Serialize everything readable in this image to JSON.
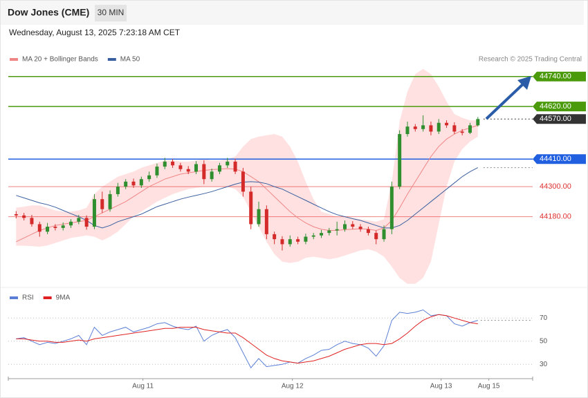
{
  "header": {
    "title": "Dow Jones (CME)",
    "interval": "30 MIN",
    "datetime": "Wednesday, August 13, 2025 7:23:18 AM CET"
  },
  "chart_data": [
    {
      "type": "candlestick",
      "credit": "Research © 2025 Trading Central",
      "up_color": "#2f8f2f",
      "down_color": "#d42a2a",
      "xlim": [
        -1,
        66
      ],
      "ylim": [
        43900,
        44880
      ],
      "open": [
        44190,
        44185,
        44175,
        44150,
        44120,
        44140,
        44135,
        44145,
        44160,
        44175,
        44140,
        44250,
        44210,
        44270,
        44300,
        44320,
        44305,
        44330,
        44345,
        44380,
        44400,
        44385,
        44370,
        44360,
        44390,
        44330,
        44360,
        44385,
        44400,
        44360,
        44280,
        44150,
        44210,
        44110,
        44090,
        44070,
        44090,
        44080,
        44100,
        44105,
        44115,
        44125,
        44130,
        44150,
        44140,
        44130,
        44115,
        44090,
        44130,
        44300,
        44510,
        44540,
        44530,
        44545,
        44520,
        44555,
        44545,
        44520,
        44515,
        44545
      ],
      "high": [
        44202,
        44195,
        44187,
        44160,
        44155,
        44150,
        44157,
        44170,
        44187,
        44185,
        44270,
        44280,
        44285,
        44315,
        44330,
        44332,
        44340,
        44360,
        44392,
        44415,
        44410,
        44395,
        44382,
        44402,
        44405,
        44372,
        44395,
        44415,
        44412,
        44375,
        44300,
        44240,
        44225,
        44120,
        44102,
        44105,
        44100,
        44112,
        44115,
        44127,
        44135,
        44160,
        44165,
        44162,
        44150,
        44140,
        44125,
        44145,
        44320,
        44525,
        44560,
        44550,
        44585,
        44560,
        44570,
        44565,
        44557,
        44530,
        44555,
        44578
      ],
      "low": [
        44173,
        44165,
        44140,
        44100,
        44110,
        44125,
        44125,
        44135,
        44150,
        44128,
        44130,
        44195,
        44200,
        44260,
        44290,
        44295,
        44295,
        44320,
        44335,
        44370,
        44375,
        44360,
        44350,
        44350,
        44310,
        44320,
        44350,
        44375,
        44350,
        44260,
        44130,
        44140,
        44090,
        44070,
        44045,
        44060,
        44070,
        44070,
        44090,
        44095,
        44105,
        44105,
        44120,
        44130,
        44120,
        44105,
        44070,
        44080,
        44110,
        44290,
        44500,
        44520,
        44520,
        44505,
        44510,
        44535,
        44510,
        44505,
        44510,
        44540
      ],
      "close": [
        44185,
        44175,
        44150,
        44120,
        44140,
        44135,
        44145,
        44160,
        44175,
        44140,
        44250,
        44210,
        44270,
        44300,
        44320,
        44305,
        44330,
        44345,
        44380,
        44400,
        44385,
        44370,
        44360,
        44390,
        44330,
        44360,
        44385,
        44400,
        44360,
        44280,
        44150,
        44210,
        44110,
        44090,
        44070,
        44090,
        44080,
        44100,
        44105,
        44115,
        44125,
        44130,
        44150,
        44140,
        44130,
        44115,
        44090,
        44130,
        44300,
        44510,
        44540,
        44530,
        44545,
        44520,
        44555,
        44545,
        44520,
        44515,
        44545,
        44570
      ],
      "series": [
        {
          "name": "MA 20 + Bollinger Bands",
          "color": "#f08585",
          "band_color": "#ffe1e1",
          "values": [
            44080,
            44095,
            44110,
            44125,
            44135,
            44145,
            44150,
            44155,
            44160,
            44165,
            44180,
            44195,
            44210,
            44225,
            44240,
            44260,
            44280,
            44300,
            44315,
            44330,
            44340,
            44350,
            44355,
            44360,
            44365,
            44368,
            44370,
            44372,
            44370,
            44360,
            44340,
            44320,
            44290,
            44260,
            44230,
            44200,
            44175,
            44155,
            44140,
            44130,
            44125,
            44125,
            44128,
            44130,
            44132,
            44130,
            44125,
            44135,
            44165,
            44215,
            44270,
            44320,
            44370,
            44420,
            44460,
            44490,
            44510,
            44525,
            44535,
            44545
          ],
          "upper": [
            44216,
            44220,
            44225,
            44225,
            44215,
            44205,
            44200,
            44200,
            44205,
            44215,
            44270,
            44300,
            44320,
            44340,
            44350,
            44360,
            44375,
            44385,
            44395,
            44405,
            44405,
            44400,
            44400,
            44405,
            44410,
            44405,
            44405,
            44410,
            44420,
            44460,
            44490,
            44500,
            44505,
            44510,
            44500,
            44460,
            44400,
            44320,
            44250,
            44200,
            44190,
            44180,
            44180,
            44175,
            44170,
            44165,
            44160,
            44170,
            44320,
            44560,
            44680,
            44750,
            44770,
            44750,
            44700,
            44640,
            44590,
            44575,
            44565,
            44565
          ],
          "lower": [
            44064,
            44064,
            44062,
            44060,
            44065,
            44075,
            44085,
            44095,
            44100,
            44105,
            44100,
            44085,
            44100,
            44120,
            44150,
            44180,
            44200,
            44220,
            44240,
            44255,
            44270,
            44280,
            44290,
            44295,
            44300,
            44300,
            44300,
            44300,
            44290,
            44260,
            44200,
            44140,
            44080,
            44030,
            44000,
            43995,
            44000,
            44015,
            44020,
            44015,
            44010,
            44015,
            44025,
            44035,
            44045,
            44050,
            44040,
            44020,
            43980,
            43935,
            43912,
            43912,
            43935,
            44000,
            44150,
            44300,
            44400,
            44450,
            44480,
            44500
          ]
        },
        {
          "name": "MA 50",
          "color": "#3a5f9f",
          "extend": true,
          "values": [
            44265,
            44255,
            44245,
            44235,
            44228,
            44218,
            44205,
            44192,
            44180,
            44165,
            44145,
            44135,
            44145,
            44160,
            44170,
            44180,
            44190,
            44205,
            44220,
            44230,
            44240,
            44250,
            44258,
            44265,
            44272,
            44280,
            44290,
            44300,
            44310,
            44318,
            44320,
            44318,
            44312,
            44300,
            44290,
            44275,
            44260,
            44245,
            44230,
            44215,
            44200,
            44188,
            44180,
            44172,
            44165,
            44155,
            44145,
            44135,
            44135,
            44145,
            44165,
            44190,
            44215,
            44240,
            44265,
            44290,
            44315,
            44340,
            44360,
            44376
          ]
        }
      ],
      "levels": [
        {
          "value": 44740,
          "label": "44740.00",
          "color": "#4b9a0c",
          "style": "box",
          "line": "solid"
        },
        {
          "value": 44620,
          "label": "44620.00",
          "color": "#4b9a0c",
          "style": "box",
          "line": "solid"
        },
        {
          "value": 44570,
          "label": "44570.00",
          "color": "#333333",
          "style": "box",
          "line": "dotted"
        },
        {
          "value": 44410,
          "label": "44410.00",
          "color": "#1f5fe0",
          "style": "box",
          "line": "solid"
        },
        {
          "value": 44300,
          "label": "44300.00",
          "color": "#e03030",
          "style": "text",
          "line": "solid"
        },
        {
          "value": 44180,
          "label": "44180.00",
          "color": "#e03030",
          "style": "text",
          "line": "solid"
        }
      ]
    },
    {
      "type": "line",
      "xlim": [
        -1,
        66
      ],
      "ylim": [
        20,
        80
      ],
      "yticks": [
        70,
        50,
        30
      ],
      "xticks": [
        {
          "value": 16.2,
          "label": "Aug 11"
        },
        {
          "value": 35.3,
          "label": "Aug 12"
        },
        {
          "value": 54.3,
          "label": "Aug 13"
        },
        {
          "value": 60.4,
          "label": "Aug 15"
        }
      ],
      "series": [
        {
          "name": "RSI",
          "color": "#5b7fd6",
          "extend": true,
          "values": [
            52,
            53,
            50,
            47,
            49,
            48,
            50,
            52,
            55,
            47,
            62,
            55,
            58,
            60,
            62,
            58,
            60,
            62,
            65,
            66,
            63,
            61,
            60,
            63,
            50,
            55,
            58,
            60,
            53,
            40,
            27,
            35,
            28,
            29,
            30,
            32,
            31,
            35,
            38,
            42,
            43,
            47,
            50,
            48,
            47,
            44,
            37,
            46,
            68,
            75,
            74,
            75,
            77,
            72,
            73,
            72,
            65,
            63,
            66,
            68
          ]
        },
        {
          "name": "9MA",
          "color": "#e02020",
          "values": [
            52,
            52,
            51,
            50,
            50,
            49,
            49,
            50,
            51,
            50,
            52,
            53,
            54,
            55,
            56,
            57,
            58,
            59,
            60,
            61,
            61,
            62,
            62,
            62,
            60,
            59,
            58,
            57,
            57,
            53,
            48,
            43,
            38,
            35,
            33,
            32,
            31,
            32,
            33,
            35,
            37,
            40,
            43,
            45,
            47,
            48,
            48,
            47,
            48,
            52,
            57,
            63,
            68,
            71,
            73,
            72,
            70,
            68,
            66,
            65
          ]
        }
      ]
    }
  ]
}
